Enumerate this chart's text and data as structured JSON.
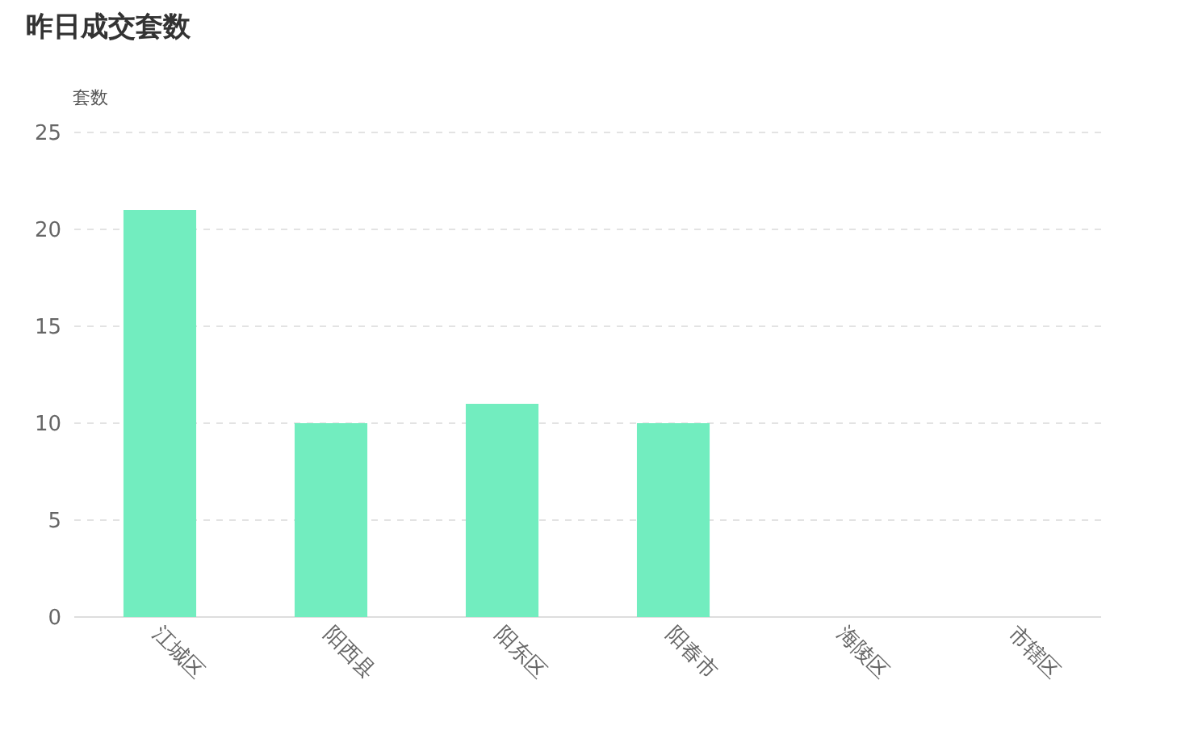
{
  "chart_data": {
    "type": "bar",
    "title": "昨日成交套数",
    "ylabel": "套数",
    "categories": [
      "江城区",
      "阳西县",
      "阳东区",
      "阳春市",
      "海陵区",
      "市辖区"
    ],
    "values": [
      21,
      10,
      11,
      10,
      0,
      0
    ],
    "color": "#72edbf",
    "ylim": [
      0,
      25
    ],
    "yticks": [
      0,
      5,
      10,
      15,
      20,
      25
    ],
    "grid": "y"
  }
}
